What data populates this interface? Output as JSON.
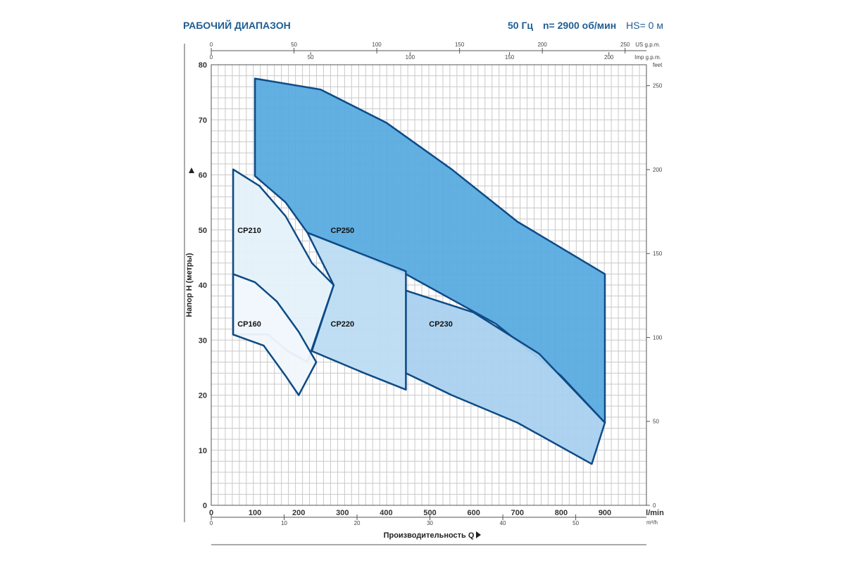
{
  "header": {
    "title": "РАБОЧИЙ ДИАПАЗОН",
    "freq": "50 Гц",
    "speed": "n= 2900 об/мин",
    "hs": "HS= 0 м"
  },
  "colors": {
    "outline": "#0e4b86",
    "grid": "#c9c9c9",
    "cp250_fill": "#5aabe0",
    "cp230_fill": "#a9d1ef",
    "cp220_fill": "#bcdcf3",
    "cp210_fill": "#e5f1fa",
    "cp160_fill": "#f1f7fc"
  },
  "chart_data": {
    "type": "area",
    "xlabel": "Производительность Q",
    "ylabel": "Напор H (метры)",
    "xlim": [
      0,
      1000
    ],
    "ylim": [
      0,
      80
    ],
    "x_unit_label": "l/min",
    "x_ticks": [
      0,
      100,
      200,
      300,
      400,
      500,
      600,
      700,
      800,
      900
    ],
    "y_ticks": [
      0,
      10,
      20,
      30,
      40,
      50,
      60,
      70,
      80
    ],
    "m3h_unit_label": "m³/h",
    "m3h_ticks": [
      0,
      10,
      20,
      30,
      40,
      50
    ],
    "us_gpm_unit_label": "US g.p.m.",
    "us_gpm_ticks": [
      0,
      50,
      100,
      150,
      200,
      250
    ],
    "imp_gpm_unit_label": "Imp g.p.m.",
    "imp_gpm_ticks": [
      0,
      50,
      100,
      150,
      200
    ],
    "feet_unit_label": "feet",
    "feet_ticks": [
      0,
      50,
      100,
      150,
      200,
      250
    ],
    "grid": true,
    "regions": [
      {
        "name": "CP250",
        "label_at": [
          300,
          50
        ],
        "polygon": [
          [
            100,
            59.8
          ],
          [
            100,
            77.5
          ],
          [
            250,
            75.5
          ],
          [
            400,
            69.5
          ],
          [
            550,
            61
          ],
          [
            700,
            51.5
          ],
          [
            900,
            42
          ],
          [
            900,
            15
          ],
          [
            800,
            23.5
          ],
          [
            650,
            33
          ],
          [
            440,
            42.2
          ],
          [
            440,
            42.2
          ],
          [
            300,
            47
          ],
          [
            220,
            49.5
          ],
          [
            170,
            55
          ]
        ]
      },
      {
        "name": "CP230",
        "label_at": [
          525,
          33
        ],
        "polygon": [
          [
            445,
            39
          ],
          [
            600,
            35
          ],
          [
            750,
            27.5
          ],
          [
            900,
            15
          ],
          [
            870,
            7.5
          ],
          [
            700,
            15
          ],
          [
            550,
            20
          ],
          [
            445,
            24
          ]
        ]
      },
      {
        "name": "CP220",
        "label_at": [
          300,
          33
        ],
        "polygon": [
          [
            220,
            49.5
          ],
          [
            300,
            47
          ],
          [
            445,
            42.5
          ],
          [
            445,
            21
          ],
          [
            350,
            24
          ],
          [
            230,
            28
          ],
          [
            280,
            40
          ]
        ]
      },
      {
        "name": "CP210",
        "label_at": [
          87,
          50
        ],
        "polygon": [
          [
            50,
            61
          ],
          [
            110,
            58
          ],
          [
            170,
            52.5
          ],
          [
            230,
            44
          ],
          [
            280,
            40
          ],
          [
            220,
            26
          ],
          [
            175,
            28
          ],
          [
            130,
            31
          ],
          [
            50,
            31
          ]
        ]
      },
      {
        "name": "CP160",
        "label_at": [
          87,
          33
        ],
        "polygon": [
          [
            50,
            42
          ],
          [
            100,
            40.5
          ],
          [
            150,
            37
          ],
          [
            200,
            31.5
          ],
          [
            240,
            26
          ],
          [
            200,
            20
          ],
          [
            170,
            23.5
          ],
          [
            120,
            29
          ],
          [
            50,
            31
          ]
        ]
      }
    ]
  }
}
